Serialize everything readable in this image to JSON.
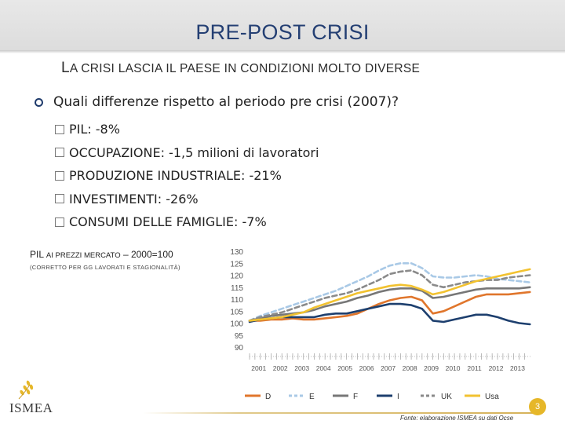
{
  "header": {
    "title": "PRE-POST CRISI",
    "subtitle_first": "L",
    "subtitle_rest": "A CRISI LASCIA IL PAESE IN CONDIZIONI MOLTO DIVERSE"
  },
  "content": {
    "main_bullet": "Quali differenze rispetto al periodo pre crisi (2007)?",
    "sub_bullets": [
      "PIL: -8%",
      "OCCUPAZIONE: -1,5 milioni di lavoratori",
      "PRODUZIONE INDUSTRIALE: -21%",
      "INVESTIMENTI: -26%",
      "CONSUMI DELLE FAMIGLIE: -7%"
    ]
  },
  "chart_section": {
    "title_a": "PIL",
    "title_b": "AI PREZZI MERCATO",
    "title_c": "– 2000=100",
    "note": "(CORRETTO PER GG LAVORATI E STAGIONALITÀ)"
  },
  "chart_data": {
    "type": "line",
    "ylim": [
      90,
      130
    ],
    "yticks": [
      90,
      95,
      100,
      105,
      110,
      115,
      120,
      125,
      130
    ],
    "xticks": [
      "2001",
      "2002",
      "2003",
      "2004",
      "2005",
      "2006",
      "2007",
      "2008",
      "2009",
      "2010",
      "2011",
      "2012",
      "2013"
    ],
    "x": [
      2000.5,
      2001.0,
      2001.5,
      2002.0,
      2002.5,
      2003.0,
      2003.5,
      2004.0,
      2004.5,
      2005.0,
      2005.5,
      2006.0,
      2006.5,
      2007.0,
      2007.5,
      2008.0,
      2008.5,
      2009.0,
      2009.5,
      2010.0,
      2010.5,
      2011.0,
      2011.5,
      2012.0,
      2012.5,
      2013.0,
      2013.5
    ],
    "series": [
      {
        "name": "D",
        "color": "#e0762c",
        "dash": "solid",
        "values": [
          101,
          101,
          101.5,
          101.5,
          102,
          101.5,
          101.5,
          102,
          102.5,
          103,
          104,
          106,
          108,
          109.5,
          110.5,
          111,
          109.5,
          104,
          105,
          107,
          109,
          111,
          112,
          112,
          112,
          112.5,
          113
        ]
      },
      {
        "name": "E",
        "color": "#a9c9e6",
        "dash": "dash",
        "values": [
          101,
          103,
          104.5,
          106,
          107.5,
          109,
          110.5,
          112,
          113.5,
          115.5,
          117.5,
          119.5,
          122,
          124,
          125,
          125,
          123,
          119.5,
          119,
          119,
          119.5,
          120,
          119.5,
          118.5,
          118,
          117.5,
          117
        ]
      },
      {
        "name": "F",
        "color": "#777777",
        "dash": "solid",
        "values": [
          101,
          102,
          103,
          103.5,
          104,
          104.5,
          105.5,
          107,
          108,
          109,
          110.5,
          111.5,
          113,
          114,
          114.5,
          114.5,
          113.5,
          110.5,
          111,
          112,
          113,
          114,
          114.5,
          114.5,
          114.5,
          114.5,
          115
        ]
      },
      {
        "name": "I",
        "color": "#1d3f6e",
        "dash": "solid",
        "values": [
          100.5,
          101.5,
          102,
          102.5,
          102.5,
          102.5,
          102.5,
          103.5,
          104,
          104,
          105,
          106,
          107,
          108,
          108,
          107.5,
          106,
          101,
          100.5,
          101.5,
          102.5,
          103.5,
          103.5,
          102.5,
          101,
          100,
          99.5
        ]
      },
      {
        "name": "UK",
        "color": "#8a8a8a",
        "dash": "dash",
        "values": [
          101,
          102.5,
          103.5,
          104.5,
          106,
          107.5,
          109,
          110.5,
          111.5,
          112.5,
          114,
          116,
          118,
          120.5,
          121.5,
          122,
          120,
          116,
          115,
          116,
          117,
          117.5,
          118,
          118,
          119,
          119.5,
          120
        ]
      },
      {
        "name": "Usa",
        "color": "#f2c230",
        "dash": "solid",
        "values": [
          101,
          101.5,
          102,
          102.5,
          103.5,
          104.5,
          106.5,
          108,
          109.5,
          111,
          112.5,
          113.5,
          114.5,
          115.5,
          116,
          115.5,
          114,
          112,
          113,
          114.5,
          116,
          117.5,
          118.5,
          119.5,
          120.5,
          121.5,
          122.5
        ]
      }
    ]
  },
  "footer": {
    "logo_text": "ISMEA",
    "source": "Fonte: elaborazione ISMEA su dati Ocse",
    "page_number": "3",
    "accent_color": "#e6b729"
  }
}
